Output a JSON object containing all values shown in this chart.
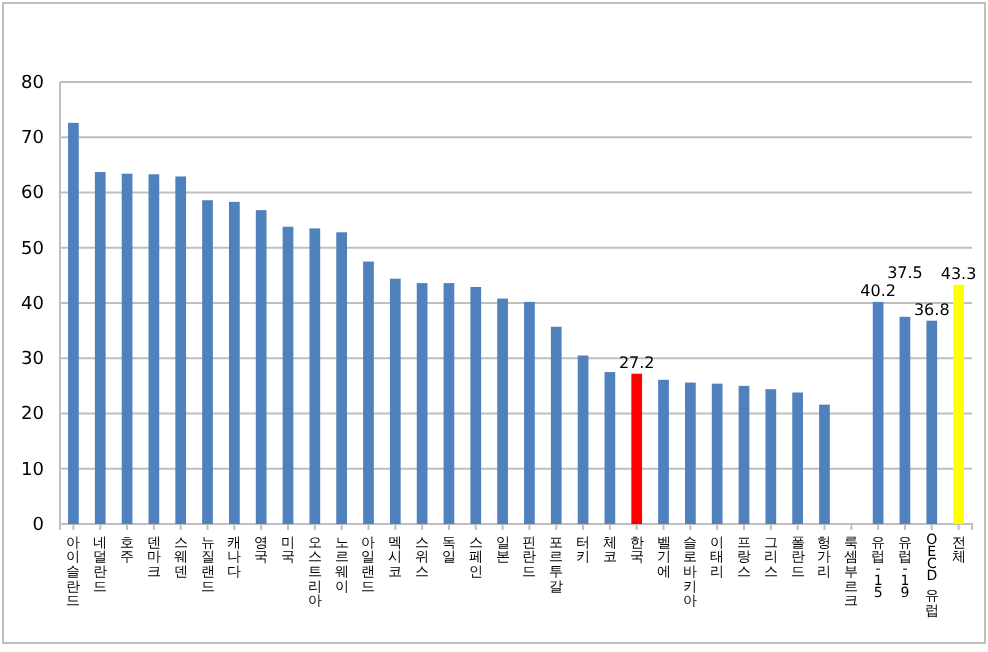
{
  "chart_data": {
    "type": "bar",
    "categories": [
      "아이슬란드",
      "네덜란드",
      "호주",
      "덴마크",
      "스웨덴",
      "뉴질랜드",
      "캐나다",
      "영국",
      "미국",
      "오스트리아",
      "노르웨이",
      "아일랜드",
      "멕시코",
      "스위스",
      "독일",
      "스페인",
      "일본",
      "핀란드",
      "포르투갈",
      "터키",
      "체코",
      "한국",
      "벨기에",
      "슬로바키아",
      "이태리",
      "프랑스",
      "그리스",
      "폴란드",
      "헝가리",
      "룩셈부르크",
      "유럽-15",
      "유럽-19",
      "OECD 유럽",
      "전체"
    ],
    "values": [
      72.6,
      63.7,
      63.4,
      63.3,
      62.9,
      58.6,
      58.3,
      56.8,
      53.8,
      53.5,
      52.8,
      47.5,
      44.4,
      43.6,
      43.6,
      42.9,
      40.8,
      40.2,
      35.7,
      30.5,
      27.5,
      27.2,
      26.1,
      25.6,
      25.4,
      25.0,
      24.4,
      23.8,
      21.6,
      null,
      40.2,
      37.5,
      36.8,
      43.3
    ],
    "colors": [
      "#4f81bd",
      "#4f81bd",
      "#4f81bd",
      "#4f81bd",
      "#4f81bd",
      "#4f81bd",
      "#4f81bd",
      "#4f81bd",
      "#4f81bd",
      "#4f81bd",
      "#4f81bd",
      "#4f81bd",
      "#4f81bd",
      "#4f81bd",
      "#4f81bd",
      "#4f81bd",
      "#4f81bd",
      "#4f81bd",
      "#4f81bd",
      "#4f81bd",
      "#4f81bd",
      "#ff0000",
      "#4f81bd",
      "#4f81bd",
      "#4f81bd",
      "#4f81bd",
      "#4f81bd",
      "#4f81bd",
      "#4f81bd",
      null,
      "#4f81bd",
      "#4f81bd",
      "#4f81bd",
      "#ffff00"
    ],
    "value_labels": [
      null,
      null,
      null,
      null,
      null,
      null,
      null,
      null,
      null,
      null,
      null,
      null,
      null,
      null,
      null,
      null,
      null,
      null,
      null,
      null,
      null,
      "27.2",
      null,
      null,
      null,
      null,
      null,
      null,
      null,
      null,
      "40.2",
      "37.5",
      "36.8",
      "43.3"
    ],
    "ylim": [
      0,
      80
    ],
    "yticks": [
      0,
      10,
      20,
      30,
      40,
      50,
      60,
      70,
      80
    ],
    "grid": "y",
    "legend": false
  }
}
